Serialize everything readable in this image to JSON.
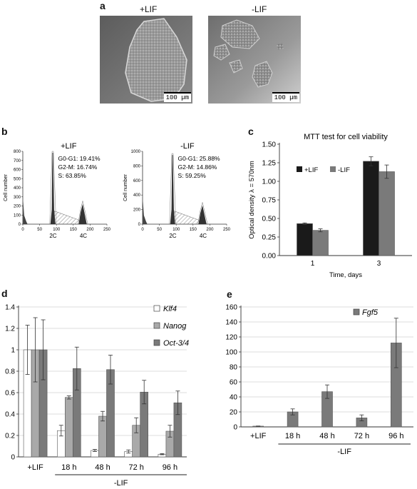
{
  "panel_a": {
    "letter": "a",
    "images": [
      {
        "label": "+LIF",
        "scale_bar": "100 µm"
      },
      {
        "label": "-LIF",
        "scale_bar": "100 µm"
      }
    ]
  },
  "panel_b": {
    "letter": "b",
    "histograms": [
      {
        "label": "+LIF",
        "g0g1": "G0-G1: 19.41%",
        "g2m": "G2-M: 16.74%",
        "s": "S: 63.85%",
        "y_ticks": [
          "0",
          "100",
          "200",
          "300",
          "400",
          "500",
          "600",
          "700",
          "800"
        ],
        "x_ticks": [
          "0",
          "50",
          "100",
          "150",
          "200",
          "250"
        ],
        "ylabel": "Cell number",
        "peak_labels": [
          "2C",
          "4C"
        ]
      },
      {
        "label": "-LIF",
        "g0g1": "G0-G1: 25.88%",
        "g2m": "G2-M: 14.86%",
        "s": "S: 59.25%",
        "y_ticks": [
          "0",
          "200",
          "400",
          "600",
          "800",
          "1000"
        ],
        "x_ticks": [
          "0",
          "50",
          "100",
          "150",
          "200",
          "250"
        ],
        "ylabel": "Cell number",
        "peak_labels": [
          "2C",
          "4C"
        ]
      }
    ]
  },
  "colors": {
    "dark": "#1a1a1a",
    "mid": "#7a7a7a",
    "light": "#a9a9a9",
    "white": "#ffffff",
    "grid": "#d0d0d0"
  },
  "chart_data": [
    {
      "panel": "c",
      "type": "bar",
      "title": "MTT test for cell viability",
      "xlabel": "Time, days",
      "ylabel": "Optical density λ = 570nm",
      "categories": [
        "1",
        "3"
      ],
      "ylim": [
        0,
        1.5
      ],
      "y_ticks": [
        "0.00",
        "0.25",
        "0.50",
        "0.75",
        "1.00",
        "1.25",
        "1.50"
      ],
      "legend_position": "top-left",
      "series": [
        {
          "name": "+LIF",
          "values": [
            0.43,
            1.27
          ],
          "errors": [
            0.01,
            0.06
          ]
        },
        {
          "name": "-LIF",
          "values": [
            0.34,
            1.13
          ],
          "errors": [
            0.02,
            0.09
          ]
        }
      ]
    },
    {
      "panel": "d",
      "type": "bar",
      "categories": [
        "+LIF",
        "18 h",
        "48 h",
        "72 h",
        "96 h"
      ],
      "group_label": "-LIF",
      "ylim": [
        0,
        1.4
      ],
      "y_ticks": [
        "0",
        "0.2",
        "0.4",
        "0.6",
        "0.8",
        "1",
        "1.2",
        "1.4"
      ],
      "grid": true,
      "legend_position": "top-right",
      "series": [
        {
          "name": "Klf4",
          "values": [
            1.0,
            0.245,
            0.06,
            0.05,
            0.025
          ],
          "errors": [
            0.23,
            0.05,
            0.01,
            0.015,
            0.005
          ]
        },
        {
          "name": "Nanog",
          "values": [
            1.0,
            0.555,
            0.38,
            0.295,
            0.24
          ],
          "errors": [
            0.3,
            0.015,
            0.045,
            0.07,
            0.055
          ]
        },
        {
          "name": "Oct-3/4",
          "values": [
            1.0,
            0.825,
            0.815,
            0.605,
            0.505
          ],
          "errors": [
            0.28,
            0.2,
            0.135,
            0.11,
            0.11
          ]
        }
      ]
    },
    {
      "panel": "e",
      "type": "bar",
      "categories": [
        "+LIF",
        "18 h",
        "48 h",
        "72 h",
        "96 h"
      ],
      "group_label": "-LIF",
      "ylim": [
        0,
        160
      ],
      "y_ticks": [
        "0",
        "20",
        "40",
        "60",
        "80",
        "100",
        "120",
        "140",
        "160"
      ],
      "grid": true,
      "legend_position": "top-left",
      "series": [
        {
          "name": "Fgf5",
          "values": [
            1,
            20,
            47,
            12,
            112
          ],
          "errors": [
            0.2,
            4,
            9,
            4,
            33
          ]
        }
      ]
    }
  ],
  "letters": {
    "c": "c",
    "d": "d",
    "e": "e"
  }
}
